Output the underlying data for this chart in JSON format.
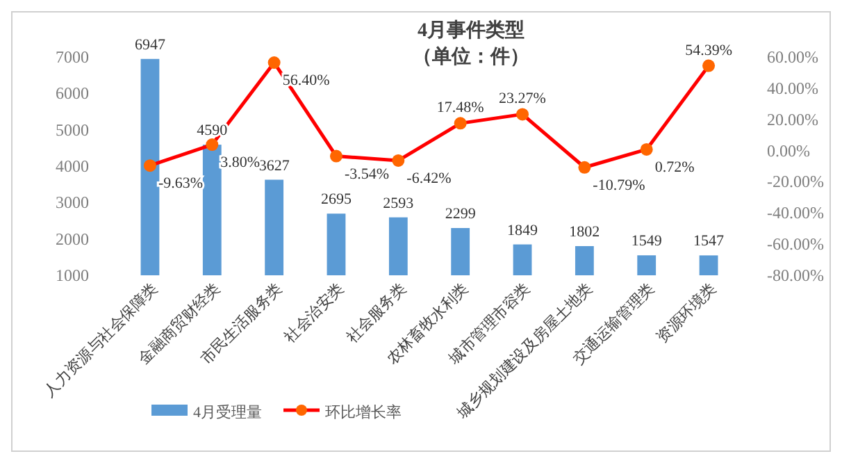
{
  "chart_data": {
    "type": "bar",
    "title": "4月事件类型",
    "subtitle": "（单位：件）",
    "categories": [
      "人力资源与社会保障类",
      "金融商贸财经类",
      "市民生活服务类",
      "社会治安类",
      "社会服务类",
      "农林畜牧水利类",
      "城市管理市容类",
      "城乡规划建设及房屋土地类",
      "交通运输管理类",
      "资源环境类"
    ],
    "series": [
      {
        "name": "4月受理量",
        "color": "#5b9bd5",
        "values": [
          6947,
          4590,
          3627,
          2695,
          2593,
          2299,
          1849,
          1802,
          1549,
          1547
        ],
        "data_labels": true
      },
      {
        "name": "环比增长率",
        "type": "line",
        "axis": "y2",
        "color": "#ff0000",
        "marker": "circle",
        "values": [
          -9.63,
          3.8,
          56.4,
          -3.54,
          -6.42,
          17.48,
          23.27,
          -10.79,
          0.72,
          54.39
        ],
        "value_labels": [
          "-9.63%",
          "3.80%",
          "56.40%",
          "-3.54%",
          "-6.42%",
          "17.48%",
          "23.27%",
          "-10.79%",
          "0.72%",
          "54.39%"
        ]
      }
    ],
    "ylim": [
      1000,
      7000
    ],
    "yticks": [
      1000,
      2000,
      3000,
      4000,
      5000,
      6000,
      7000
    ],
    "y2lim": [
      -80,
      60
    ],
    "y2ticks": [
      {
        "value": -80,
        "label": "-80.00%"
      },
      {
        "value": -60,
        "label": "-60.00%"
      },
      {
        "value": -40,
        "label": "-40.00%"
      },
      {
        "value": -20,
        "label": "-20.00%"
      },
      {
        "value": 0,
        "label": "0.00%"
      },
      {
        "value": 20,
        "label": "20.00%"
      },
      {
        "value": 40,
        "label": "40.00%"
      },
      {
        "value": 60,
        "label": "60.00%"
      }
    ],
    "grid": false,
    "legend": "bottom"
  }
}
